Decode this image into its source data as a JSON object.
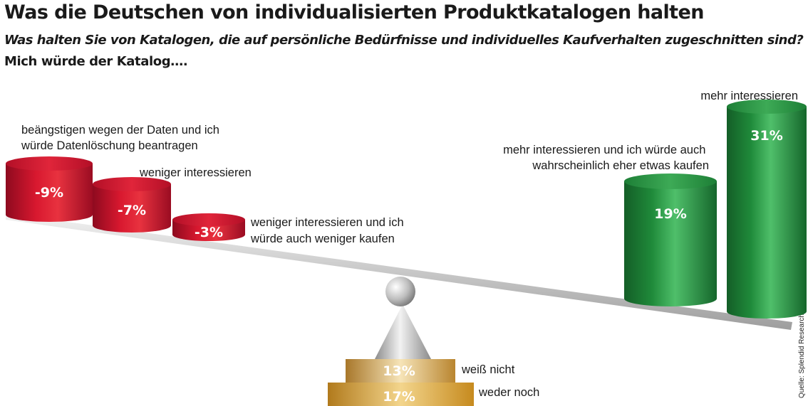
{
  "title": "Was die Deutschen von individualisierten Produktkatalogen halten",
  "subtitle": "Was halten Sie von Katalogen, die auf persönliche Bedürfnisse und individuelles Kaufverhalten zugeschnitten sind?",
  "subtitle2": "Mich würde der Katalog….",
  "source": "Quelle: Splendid Research; Grafik Hightext Verlag",
  "colors": {
    "negative": "#c8102e",
    "positive": "#1f8a3a",
    "neutral": "#c4943e",
    "pivot": "#b5b5b5"
  },
  "chart_data": {
    "type": "bar",
    "style": "seesaw",
    "negative": [
      {
        "label": "beängstigen wegen der Daten und ich würde Datenlöschung beantragen",
        "value": -9,
        "display": "-9%"
      },
      {
        "label": "weniger interessieren",
        "value": -7,
        "display": "-7%"
      },
      {
        "label": "weniger interessieren und ich würde auch weniger kaufen",
        "value": -3,
        "display": "-3%"
      }
    ],
    "positive": [
      {
        "label": "mehr interessieren und ich würde auch wahrscheinlich eher etwas kaufen",
        "value": 19,
        "display": "19%"
      },
      {
        "label": "mehr interessieren",
        "value": 31,
        "display": "31%"
      }
    ],
    "neutral": [
      {
        "label": "weiß nicht",
        "value": 13,
        "display": "13%"
      },
      {
        "label": "weder noch",
        "value": 17,
        "display": "17%"
      }
    ]
  }
}
